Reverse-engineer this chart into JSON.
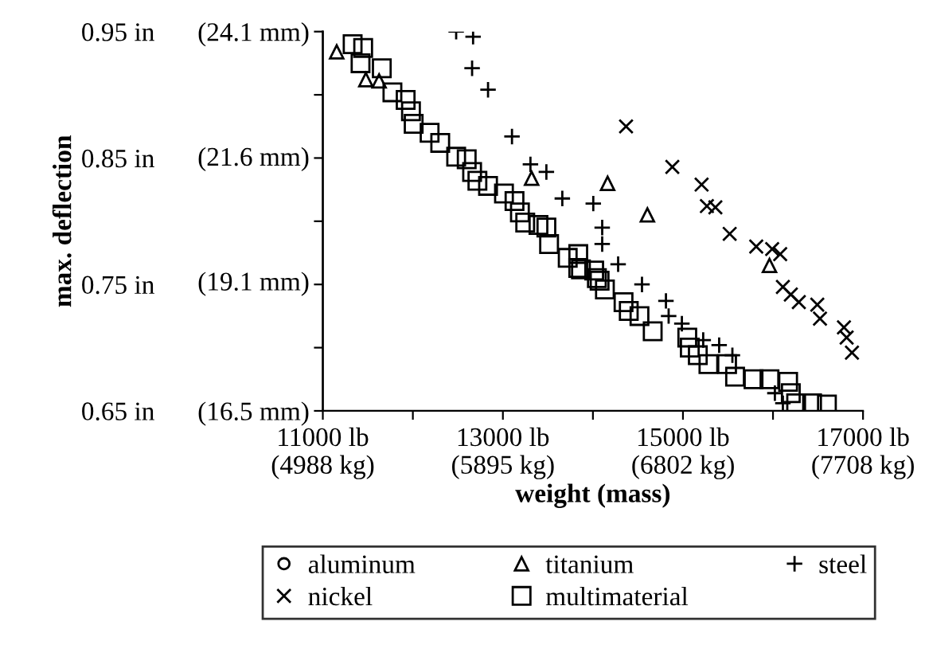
{
  "chart_data": {
    "type": "scatter",
    "xlabel": "weight (mass)",
    "ylabel": "max. deflection",
    "xlim": [
      11000,
      17000
    ],
    "ylim": [
      0.65,
      0.95
    ],
    "xticks": [
      {
        "value": 11000,
        "label": "11000 lb"
      },
      {
        "value": 12000,
        "label": null
      },
      {
        "value": 13000,
        "label": "13000 lb"
      },
      {
        "value": 14000,
        "label": null
      },
      {
        "value": 15000,
        "label": "15000 lb"
      },
      {
        "value": 16000,
        "label": null
      },
      {
        "value": 17000,
        "label": "17000 lb"
      }
    ],
    "x2lim": [
      4988,
      7708
    ],
    "x2ticks": [
      {
        "value": 4988,
        "label": "(4988 kg)"
      },
      {
        "value": 5895,
        "label": "(5895 kg)"
      },
      {
        "value": 6802,
        "label": "(6802 kg)"
      },
      {
        "value": 7708,
        "label": "(7708 kg)"
      }
    ],
    "yticks": [
      {
        "value": 0.65,
        "label": "0.65 in"
      },
      {
        "value": 0.7,
        "label": null
      },
      {
        "value": 0.75,
        "label": "0.75 in"
      },
      {
        "value": 0.8,
        "label": null
      },
      {
        "value": 0.85,
        "label": "0.85 in"
      },
      {
        "value": 0.9,
        "label": null
      },
      {
        "value": 0.95,
        "label": "0.95 in"
      }
    ],
    "y2lim": [
      16.5,
      24.1
    ],
    "y2ticks": [
      {
        "value": 16.5,
        "label": "(16.5 mm)"
      },
      {
        "value": 19.1,
        "label": "(19.1 mm)"
      },
      {
        "value": 21.6,
        "label": "(21.6 mm)"
      },
      {
        "value": 24.1,
        "label": "(24.1 mm)"
      }
    ],
    "grid": false,
    "legend": "bottom",
    "series": [
      {
        "name": "aluminum",
        "color": "#000000",
        "marker": "circle"
      },
      {
        "name": "titanium",
        "color": "#000000",
        "marker": "triangle",
        "x": [
          11154,
          11478,
          11625,
          13319,
          14163,
          14605,
          15961
        ],
        "values": [
          0.934,
          0.912,
          0.911,
          0.834,
          0.83,
          0.805,
          0.765
        ]
      },
      {
        "name": "steel",
        "color": "#000000",
        "marker": "plus",
        "x": [
          12481,
          12669,
          12658,
          12835,
          13101,
          13306,
          13483,
          13660,
          14004,
          14103,
          14103,
          14280,
          14545,
          14811,
          14841,
          14988,
          15225,
          15402,
          15549,
          16021,
          16110
        ],
        "values": [
          0.95,
          0.946,
          0.921,
          0.904,
          0.867,
          0.845,
          0.839,
          0.818,
          0.814,
          0.795,
          0.782,
          0.766,
          0.75,
          0.737,
          0.725,
          0.719,
          0.706,
          0.702,
          0.694,
          0.664,
          0.656
        ]
      },
      {
        "name": "nickel",
        "color": "#000000",
        "marker": "cross",
        "x": [
          14368,
          14882,
          15207,
          15266,
          15360,
          15519,
          15814,
          15991,
          16080,
          16110,
          16198,
          16287,
          16492,
          16522,
          16788,
          16818,
          16877
        ],
        "values": [
          0.875,
          0.843,
          0.829,
          0.812,
          0.811,
          0.79,
          0.78,
          0.778,
          0.774,
          0.748,
          0.742,
          0.736,
          0.734,
          0.723,
          0.716,
          0.708,
          0.696
        ]
      },
      {
        "name": "multimaterial",
        "color": "#000000",
        "marker": "square",
        "x": [
          11331,
          11448,
          11419,
          11655,
          11773,
          11920,
          11979,
          12009,
          12186,
          12304,
          12481,
          12598,
          12658,
          12717,
          12835,
          13012,
          13129,
          13189,
          13248,
          13395,
          13483,
          13513,
          13720,
          13837,
          14014,
          14074,
          14133,
          13837,
          13867,
          14044,
          14340,
          14398,
          14517,
          14664,
          15048,
          15076,
          15165,
          15283,
          15490,
          15579,
          15784,
          15961,
          16168,
          16198,
          16257,
          16434,
          16599
        ],
        "values": [
          0.94,
          0.937,
          0.925,
          0.921,
          0.902,
          0.896,
          0.887,
          0.877,
          0.87,
          0.862,
          0.851,
          0.849,
          0.839,
          0.832,
          0.828,
          0.822,
          0.816,
          0.807,
          0.799,
          0.797,
          0.795,
          0.782,
          0.771,
          0.763,
          0.761,
          0.753,
          0.746,
          0.774,
          0.762,
          0.755,
          0.736,
          0.729,
          0.725,
          0.713,
          0.708,
          0.7,
          0.694,
          0.687,
          0.687,
          0.677,
          0.675,
          0.675,
          0.673,
          0.664,
          0.656,
          0.656,
          0.655
        ]
      }
    ]
  }
}
